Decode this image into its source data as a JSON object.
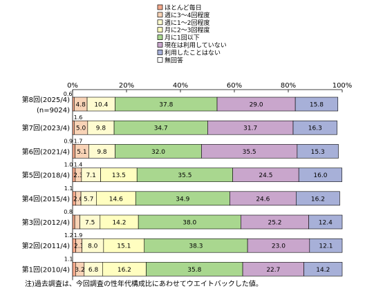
{
  "chart_data": {
    "type": "bar",
    "orientation": "horizontal",
    "stacked": "percent",
    "xlim": [
      0,
      100
    ],
    "x_ticks": [
      "0%",
      "20%",
      "40%",
      "60%",
      "80%",
      "100%"
    ],
    "grid": false,
    "legend_position": "top-center",
    "categories": [
      {
        "label": "第8回(2025/4)",
        "sublabel": "(n=9024)"
      },
      {
        "label": "第7回(2023/4)",
        "sublabel": ""
      },
      {
        "label": "第6回(2021/4)",
        "sublabel": ""
      },
      {
        "label": "第5回(2018/4)",
        "sublabel": ""
      },
      {
        "label": "第4回(2015/4)",
        "sublabel": ""
      },
      {
        "label": "第3回(2012/4)",
        "sublabel": ""
      },
      {
        "label": "第2回(2011/4)",
        "sublabel": ""
      },
      {
        "label": "第1回(2010/4)",
        "sublabel": ""
      }
    ],
    "series": [
      {
        "name": "ほとんど毎日",
        "color": "#f4a98c",
        "values": [
          0.6,
          0.6,
          0.9,
          1.0,
          1.1,
          0.8,
          1.2,
          1.1
        ],
        "labels": [
          "0.6",
          "",
          "0.9",
          "1.0",
          "1.1",
          "0.8",
          "1.2",
          "1.1"
        ]
      },
      {
        "name": "週に3～4回程度",
        "color": "#f8d3b6",
        "values": [
          4.8,
          5.0,
          5.1,
          2.3,
          2.0,
          1.9,
          2.3,
          3.2
        ],
        "labels": [
          "4.8",
          "5.0",
          "5.1",
          "2.3",
          "2.0",
          "",
          "2.3",
          "3.2"
        ]
      },
      {
        "name": "週に1～2回程度",
        "color": "#fefbd0",
        "values": [
          10.4,
          9.8,
          9.8,
          7.1,
          5.7,
          7.5,
          8.0,
          6.8
        ],
        "labels": [
          "10.4",
          "9.8",
          "9.8",
          "7.1",
          "5.7",
          "7.5",
          "8.0",
          "6.8"
        ]
      },
      {
        "name": "月に2～3回程度",
        "color": "#fffec0",
        "values": [
          0.0,
          0.0,
          0.0,
          13.5,
          14.6,
          14.2,
          15.1,
          16.2
        ],
        "labels": [
          "",
          "",
          "",
          "13.5",
          "14.6",
          "14.2",
          "15.1",
          "16.2"
        ]
      },
      {
        "name": "月に1回以下",
        "color": "#a9d78f",
        "values": [
          37.8,
          34.7,
          32.0,
          35.5,
          34.9,
          38.0,
          38.3,
          35.8
        ],
        "labels": [
          "37.8",
          "34.7",
          "32.0",
          "35.5",
          "34.9",
          "38.0",
          "38.3",
          "35.8"
        ]
      },
      {
        "name": "現在は利用していない",
        "color": "#c9a6cc",
        "values": [
          29.0,
          31.7,
          35.5,
          24.5,
          24.6,
          25.2,
          23.0,
          22.7
        ],
        "labels": [
          "29.0",
          "31.7",
          "35.5",
          "24.5",
          "24.6",
          "25.2",
          "23.0",
          "22.7"
        ]
      },
      {
        "name": "利用したことはない",
        "color": "#a7b0d8",
        "values": [
          15.8,
          16.3,
          15.3,
          16.0,
          16.2,
          12.4,
          12.1,
          14.2
        ],
        "labels": [
          "15.8",
          "16.3",
          "15.3",
          "16.0",
          "16.2",
          "12.4",
          "12.1",
          "14.2"
        ]
      },
      {
        "name": "無回答",
        "color": "#ffffff",
        "values": [
          0.0,
          0.0,
          0.0,
          0.0,
          0.0,
          0.0,
          0.0,
          0.0
        ],
        "labels": [
          "",
          "",
          "",
          "",
          "",
          "",
          "",
          ""
        ]
      }
    ],
    "top_annotations": [
      "",
      "1.6",
      "1.7",
      "1.4",
      "",
      "",
      "1.9",
      ""
    ],
    "footnote": "注)過去調査は、今回調査の性年代構成比にあわせてウエイトバックした値。"
  }
}
